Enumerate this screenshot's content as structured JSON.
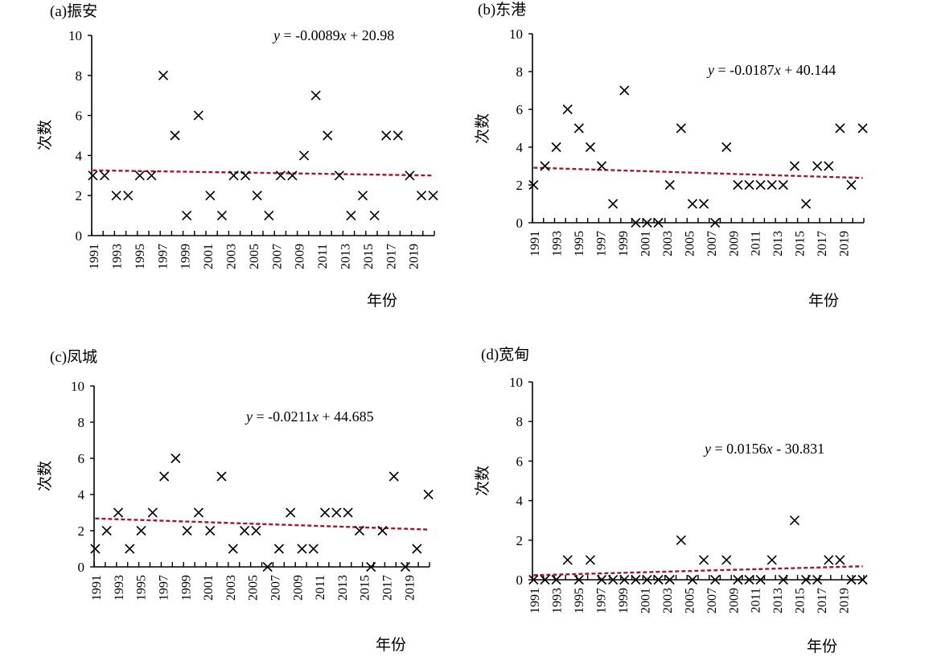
{
  "chart_data": [
    {
      "type": "scatter",
      "title": "(a)振安",
      "ylabel": "次数",
      "xlabel": "年份",
      "equation": "y = -0.0089x + 20.98",
      "eq_parts": [
        "y",
        " = -0.0089",
        "x",
        " + 20.98"
      ],
      "trend": {
        "slope": -0.0089,
        "intercept": 20.98
      },
      "ylim": [
        0,
        10
      ],
      "yticks": [
        "0",
        "2",
        "4",
        "6",
        "8",
        "10"
      ],
      "xticks": [
        "1991",
        "1993",
        "1995",
        "1997",
        "1999",
        "2001",
        "2003",
        "2005",
        "2007",
        "2009",
        "2011",
        "2013",
        "2015",
        "2017",
        "2019"
      ],
      "x": [
        1991,
        1992,
        1993,
        1994,
        1995,
        1996,
        1997,
        1998,
        1999,
        2000,
        2001,
        2002,
        2003,
        2004,
        2005,
        2006,
        2007,
        2008,
        2009,
        2010,
        2011,
        2012,
        2013,
        2014,
        2015,
        2016,
        2017,
        2018,
        2019,
        2020
      ],
      "values": [
        3,
        3,
        2,
        2,
        3,
        3,
        8,
        5,
        1,
        6,
        2,
        1,
        3,
        3,
        2,
        1,
        3,
        3,
        4,
        7,
        5,
        3,
        1,
        2,
        1,
        5,
        5,
        3,
        2,
        2
      ]
    },
    {
      "type": "scatter",
      "title": "(b)东港",
      "ylabel": "次数",
      "xlabel": "年份",
      "equation": "y = -0.0187x + 40.144",
      "eq_parts": [
        "y",
        " = -0.0187",
        "x",
        " + 40.144"
      ],
      "trend": {
        "slope": -0.0187,
        "intercept": 40.144
      },
      "ylim": [
        0,
        10
      ],
      "yticks": [
        "0",
        "2",
        "4",
        "6",
        "8",
        "10"
      ],
      "xticks": [
        "1991",
        "1993",
        "1995",
        "1997",
        "1999",
        "2001",
        "2003",
        "2005",
        "2007",
        "2009",
        "2011",
        "2013",
        "2015",
        "2017",
        "2019"
      ],
      "x": [
        1991,
        1992,
        1993,
        1994,
        1995,
        1996,
        1997,
        1998,
        1999,
        2000,
        2001,
        2002,
        2003,
        2004,
        2005,
        2006,
        2007,
        2008,
        2009,
        2010,
        2011,
        2012,
        2013,
        2014,
        2015,
        2016,
        2017,
        2018,
        2019,
        2020
      ],
      "values": [
        2,
        3,
        4,
        6,
        5,
        4,
        3,
        1,
        7,
        0,
        0,
        0,
        2,
        5,
        1,
        1,
        0,
        4,
        2,
        2,
        2,
        2,
        2,
        3,
        1,
        3,
        3,
        5,
        2,
        5
      ]
    },
    {
      "type": "scatter",
      "title": "(c)凤城",
      "ylabel": "次数",
      "xlabel": "年份",
      "equation": "y = -0.0211x + 44.685",
      "eq_parts": [
        "y",
        " = -0.0211",
        "x",
        " + 44.685"
      ],
      "trend": {
        "slope": -0.0211,
        "intercept": 44.685
      },
      "ylim": [
        0,
        10
      ],
      "yticks": [
        "0",
        "2",
        "4",
        "6",
        "8",
        "10"
      ],
      "xticks": [
        "1991",
        "1993",
        "1995",
        "1997",
        "1999",
        "2001",
        "2003",
        "2005",
        "2007",
        "2009",
        "2011",
        "2013",
        "2015",
        "2017",
        "2019"
      ],
      "x": [
        1991,
        1992,
        1993,
        1994,
        1995,
        1996,
        1997,
        1998,
        1999,
        2000,
        2001,
        2002,
        2003,
        2004,
        2005,
        2006,
        2007,
        2008,
        2009,
        2010,
        2011,
        2012,
        2013,
        2014,
        2015,
        2016,
        2017,
        2018,
        2019,
        2020
      ],
      "values": [
        1,
        2,
        3,
        1,
        2,
        3,
        5,
        6,
        2,
        3,
        2,
        5,
        1,
        2,
        2,
        0,
        1,
        3,
        1,
        1,
        3,
        3,
        3,
        2,
        0,
        2,
        5,
        0,
        1,
        4
      ]
    },
    {
      "type": "scatter",
      "title": "(d)宽甸",
      "ylabel": "次数",
      "xlabel": "年份",
      "equation": "y = 0.0156x - 30.831",
      "eq_parts": [
        "y",
        " = 0.0156",
        "x",
        " - 30.831"
      ],
      "trend": {
        "slope": 0.0156,
        "intercept": -30.831
      },
      "ylim": [
        0,
        10
      ],
      "yticks": [
        "0",
        "2",
        "4",
        "6",
        "8",
        "10"
      ],
      "xticks": [
        "1991",
        "1993",
        "1995",
        "1997",
        "1999",
        "2001",
        "2003",
        "2005",
        "2007",
        "2009",
        "2011",
        "2013",
        "2015",
        "2017",
        "2019"
      ],
      "x": [
        1991,
        1992,
        1993,
        1994,
        1995,
        1996,
        1997,
        1998,
        1999,
        2000,
        2001,
        2002,
        2003,
        2004,
        2005,
        2006,
        2007,
        2008,
        2009,
        2010,
        2011,
        2012,
        2013,
        2014,
        2015,
        2016,
        2017,
        2018,
        2019,
        2020
      ],
      "values": [
        0,
        0,
        0,
        1,
        0,
        1,
        0,
        0,
        0,
        0,
        0,
        0,
        0,
        2,
        0,
        1,
        0,
        1,
        0,
        0,
        0,
        1,
        0,
        3,
        0,
        0,
        1,
        1,
        0,
        0
      ]
    }
  ],
  "colors": {
    "marker": "#000000",
    "trendline": "#a0182a",
    "axis": "#000000"
  }
}
